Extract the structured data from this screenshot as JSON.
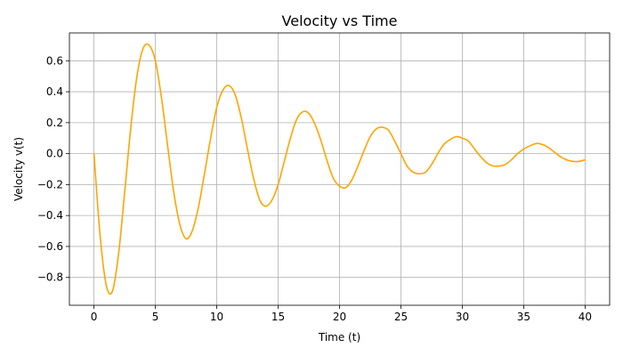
{
  "chart_data": {
    "type": "line",
    "title": "Velocity vs Time",
    "xlabel": "Time (t)",
    "ylabel": "Velocity v(t)",
    "xlim": [
      -2,
      42
    ],
    "ylim": [
      -0.98,
      0.78
    ],
    "xticks": [
      0,
      5,
      10,
      15,
      20,
      25,
      30,
      35,
      40
    ],
    "xtick_labels": [
      "0",
      "5",
      "10",
      "15",
      "20",
      "25",
      "30",
      "35",
      "40"
    ],
    "yticks": [
      -0.8,
      -0.6,
      -0.4,
      -0.2,
      0.0,
      0.2,
      0.4,
      0.6
    ],
    "ytick_labels": [
      "−0.8",
      "−0.6",
      "−0.4",
      "−0.2",
      "0.0",
      "0.2",
      "0.4",
      "0.6"
    ],
    "grid": true,
    "color": "#ffa500",
    "series": [
      {
        "points": [
          [
            0,
            0.0
          ],
          [
            0.5,
            -0.53
          ],
          [
            1.0,
            -0.85
          ],
          [
            1.5,
            -0.89
          ],
          [
            2.0,
            -0.65
          ],
          [
            2.5,
            -0.25
          ],
          [
            3.0,
            0.17
          ],
          [
            3.5,
            0.5
          ],
          [
            4.0,
            0.68
          ],
          [
            4.5,
            0.7
          ],
          [
            5.0,
            0.6
          ],
          [
            5.5,
            0.36
          ],
          [
            6.0,
            0.05
          ],
          [
            6.5,
            -0.25
          ],
          [
            7.0,
            -0.46
          ],
          [
            7.5,
            -0.55
          ],
          [
            8.0,
            -0.5
          ],
          [
            8.5,
            -0.35
          ],
          [
            9.0,
            -0.13
          ],
          [
            9.5,
            0.1
          ],
          [
            10.0,
            0.3
          ],
          [
            10.5,
            0.41
          ],
          [
            11.0,
            0.44
          ],
          [
            11.5,
            0.38
          ],
          [
            12.0,
            0.23
          ],
          [
            12.5,
            0.03
          ],
          [
            13.0,
            -0.16
          ],
          [
            13.5,
            -0.3
          ],
          [
            14.0,
            -0.34
          ],
          [
            14.5,
            -0.3
          ],
          [
            15.0,
            -0.2
          ],
          [
            15.5,
            -0.05
          ],
          [
            16.0,
            0.1
          ],
          [
            16.5,
            0.22
          ],
          [
            17.0,
            0.27
          ],
          [
            17.5,
            0.26
          ],
          [
            18.0,
            0.19
          ],
          [
            18.5,
            0.08
          ],
          [
            19.0,
            -0.05
          ],
          [
            19.5,
            -0.16
          ],
          [
            20.0,
            -0.21
          ],
          [
            20.5,
            -0.22
          ],
          [
            21.0,
            -0.17
          ],
          [
            21.5,
            -0.08
          ],
          [
            22.0,
            0.02
          ],
          [
            22.5,
            0.11
          ],
          [
            23.0,
            0.16
          ],
          [
            23.5,
            0.17
          ],
          [
            24.0,
            0.15
          ],
          [
            24.5,
            0.08
          ],
          [
            25.0,
            0.0
          ],
          [
            25.5,
            -0.08
          ],
          [
            26.0,
            -0.12
          ],
          [
            26.5,
            -0.13
          ],
          [
            27.0,
            -0.12
          ],
          [
            27.5,
            -0.07
          ],
          [
            28.0,
            0.0
          ],
          [
            28.5,
            0.06
          ],
          [
            29.0,
            0.09
          ],
          [
            29.5,
            0.11
          ],
          [
            30.0,
            0.1
          ],
          [
            30.5,
            0.08
          ],
          [
            31.0,
            0.03
          ],
          [
            31.5,
            -0.02
          ],
          [
            32.0,
            -0.06
          ],
          [
            32.5,
            -0.08
          ],
          [
            33.0,
            -0.08
          ],
          [
            33.5,
            -0.07
          ],
          [
            34.0,
            -0.04
          ],
          [
            34.5,
            0.0
          ],
          [
            35.0,
            0.03
          ],
          [
            35.5,
            0.05
          ],
          [
            36.0,
            0.065
          ],
          [
            36.5,
            0.06
          ],
          [
            37.0,
            0.04
          ],
          [
            37.5,
            0.01
          ],
          [
            38.0,
            -0.02
          ],
          [
            38.5,
            -0.04
          ],
          [
            39.0,
            -0.05
          ],
          [
            39.5,
            -0.05
          ],
          [
            40.0,
            -0.04
          ]
        ]
      }
    ]
  }
}
